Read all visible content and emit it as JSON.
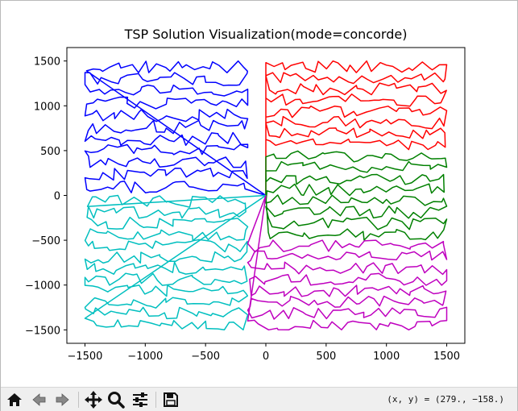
{
  "chart_data": {
    "type": "line",
    "title": "TSP Solution Visualization(mode=concorde)",
    "xlabel": "",
    "ylabel": "",
    "xlim": [
      -1650,
      1650
    ],
    "ylim": [
      -1650,
      1650
    ],
    "xticks": [
      -1500,
      -1000,
      -500,
      0,
      500,
      1000,
      1500
    ],
    "yticks": [
      -1500,
      -1000,
      -500,
      0,
      500,
      1000,
      1500
    ],
    "xtick_labels": [
      "−1500",
      "−1000",
      "−500",
      "0",
      "500",
      "1000",
      "1500"
    ],
    "ytick_labels": [
      "−1500",
      "−1000",
      "−500",
      "0",
      "500",
      "1000",
      "1500"
    ],
    "grid": false,
    "depot": [
      0,
      0
    ],
    "series": [
      {
        "color": "#0000ff",
        "region": [
          -1500,
          -150,
          30,
          1500
        ]
      },
      {
        "color": "#ff0000",
        "region": [
          0,
          1500,
          500,
          1500
        ]
      },
      {
        "color": "#008000",
        "region": [
          0,
          1500,
          -500,
          500
        ]
      },
      {
        "color": "#00bfbf",
        "region": [
          -1500,
          -150,
          -1500,
          0
        ]
      },
      {
        "color": "#bf00bf",
        "region": [
          -150,
          1500,
          -1500,
          -500
        ]
      }
    ]
  },
  "toolbar": {
    "icons": [
      "home-icon",
      "back-icon",
      "forward-icon",
      "pan-icon",
      "zoom-icon",
      "configure-subplots-icon",
      "save-icon"
    ],
    "coords_text": "(x, y) = (279., −158.)"
  }
}
